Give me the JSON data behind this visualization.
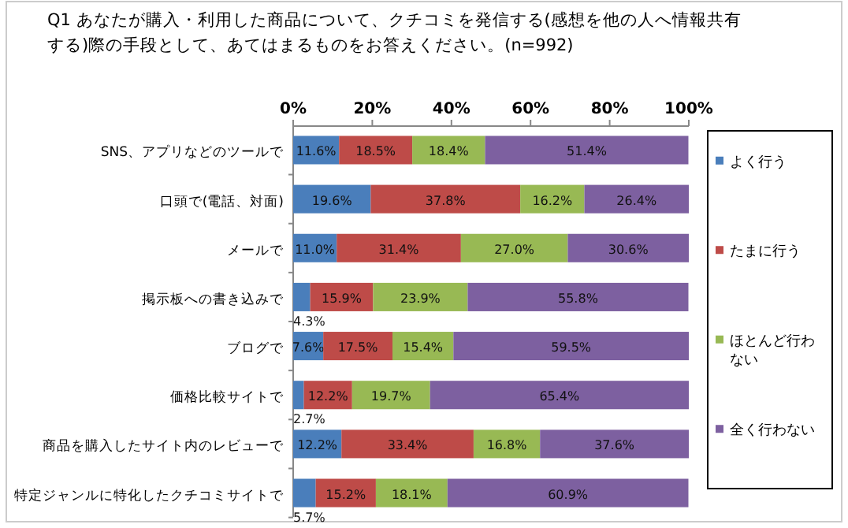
{
  "chart_data": {
    "type": "bar",
    "orientation": "horizontal",
    "stacked": true,
    "title": "Q1 あなたが購入・利用した商品について、クチコミを発信する(感想を他の人へ情報共有する)際の手段として、あてはまるものをお答えください。(n=992)",
    "categories": [
      "SNS、アプリなどのツールで",
      "口頭で(電話、対面)",
      "メールで",
      "掲示板への書き込みで",
      "ブログで",
      "価格比較サイトで",
      "商品を購入したサイト内のレビューで",
      "特定ジャンルに特化したクチコミサイトで"
    ],
    "series": [
      {
        "name": "よく行う",
        "color": "#4a7ebb",
        "values": [
          11.6,
          19.6,
          11.0,
          4.3,
          7.6,
          2.7,
          12.2,
          5.7
        ],
        "value_labels": [
          "11.6%",
          "19.6%",
          "11.0%",
          "4.3%",
          "7.6%",
          "2.7%",
          "12.2%",
          "5.7%"
        ]
      },
      {
        "name": "たまに行う",
        "color": "#be4b48",
        "values": [
          18.5,
          37.8,
          31.4,
          15.9,
          17.5,
          12.2,
          33.4,
          15.2
        ],
        "value_labels": [
          "18.5%",
          "37.8%",
          "31.4%",
          "15.9%",
          "17.5%",
          "12.2%",
          "33.4%",
          "15.2%"
        ]
      },
      {
        "name": "ほとんど行わない",
        "color": "#98b954",
        "values": [
          18.4,
          16.2,
          27.0,
          23.9,
          15.4,
          19.7,
          16.8,
          18.1
        ],
        "value_labels": [
          "18.4%",
          "16.2%",
          "27.0%",
          "23.9%",
          "15.4%",
          "19.7%",
          "16.8%",
          "18.1%"
        ]
      },
      {
        "name": "全く行わない",
        "color": "#7d60a0",
        "values": [
          51.4,
          26.4,
          30.6,
          55.8,
          59.5,
          65.4,
          37.6,
          60.9
        ],
        "value_labels": [
          "51.4%",
          "26.4%",
          "30.6%",
          "55.8%",
          "59.5%",
          "65.4%",
          "37.6%",
          "60.9%"
        ]
      }
    ],
    "xlim": [
      0,
      100
    ],
    "xticks": [
      {
        "value": 0,
        "label": "0%"
      },
      {
        "value": 20,
        "label": "20%"
      },
      {
        "value": 40,
        "label": "40%"
      },
      {
        "value": 60,
        "label": "60%"
      },
      {
        "value": 80,
        "label": "80%"
      },
      {
        "value": 100,
        "label": "100%"
      }
    ],
    "grid": false,
    "legend": "right"
  }
}
